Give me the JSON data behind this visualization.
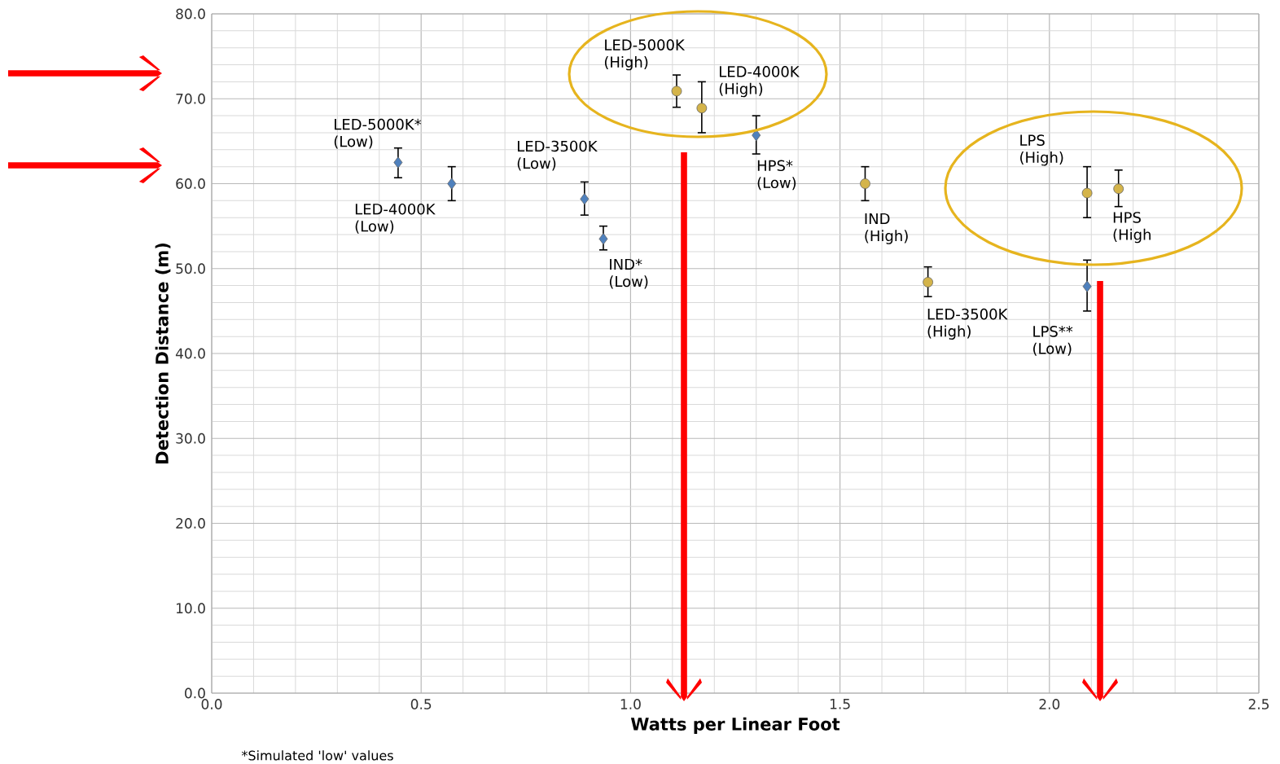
{
  "chart_data": {
    "type": "scatter",
    "xlabel": "Watts per Linear Foot",
    "ylabel": "Detection Distance (m)",
    "xlim": [
      0,
      2.5
    ],
    "ylim": [
      0,
      80
    ],
    "xticks": [
      {
        "value": 0,
        "label": "0.0"
      },
      {
        "value": 0.5,
        "label": "0.5"
      },
      {
        "value": 1,
        "label": "1.0"
      },
      {
        "value": 1.5,
        "label": "1.5"
      },
      {
        "value": 2,
        "label": "2.0"
      },
      {
        "value": 2.5,
        "label": "2.5"
      }
    ],
    "yticks": [
      {
        "value": 0,
        "label": "0.0"
      },
      {
        "value": 10,
        "label": "10.0"
      },
      {
        "value": 20,
        "label": "20.0"
      },
      {
        "value": 30,
        "label": "30.0"
      },
      {
        "value": 40,
        "label": "40.0"
      },
      {
        "value": 50,
        "label": "50.0"
      },
      {
        "value": 60,
        "label": "60.0"
      },
      {
        "value": 70,
        "label": "70.0"
      },
      {
        "value": 80,
        "label": "80.0"
      }
    ],
    "grid": true,
    "series": [
      {
        "color": "#4f81bd",
        "marker": "diamond",
        "x": [
          0.445,
          0.573,
          0.89,
          0.935,
          1.3,
          2.09
        ],
        "values": [
          62.5,
          60.0,
          58.2,
          53.5,
          65.7,
          47.9
        ],
        "errors": [
          [
            60.7,
            64.2
          ],
          [
            58.0,
            62.0
          ],
          [
            56.3,
            60.2
          ],
          [
            52.2,
            55.0
          ],
          [
            63.5,
            68.0
          ],
          [
            45.0,
            51.0
          ]
        ]
      },
      {
        "color": "#d4b44a",
        "marker": "circle",
        "x": [
          1.11,
          1.17,
          1.56,
          1.71,
          2.09,
          2.165
        ],
        "values": [
          70.9,
          68.9,
          60.0,
          48.4,
          58.9,
          59.4
        ],
        "errors": [
          [
            69.0,
            72.8
          ],
          [
            66.0,
            72.0
          ],
          [
            58.0,
            62.0
          ],
          [
            46.7,
            50.2
          ],
          [
            56.0,
            62.0
          ],
          [
            57.3,
            61.6
          ]
        ]
      }
    ],
    "annotations": [
      {
        "text": "LED-5000K* (Low)",
        "x": 0.445,
        "y": 62.5
      },
      {
        "text": "LED-4000K (Low)",
        "x": 0.573,
        "y": 60.0
      },
      {
        "text": "LED-3500K (Low)",
        "x": 0.89,
        "y": 58.2
      },
      {
        "text": "IND* (Low)",
        "x": 0.935,
        "y": 53.5
      },
      {
        "text": "HPS* (Low)",
        "x": 1.3,
        "y": 65.7
      },
      {
        "text": "LPS** (Low)",
        "x": 2.09,
        "y": 47.9
      },
      {
        "text": "LED-5000K (High)",
        "x": 1.11,
        "y": 70.9
      },
      {
        "text": "LED-4000K (High)",
        "x": 1.17,
        "y": 68.9
      },
      {
        "text": "IND (High)",
        "x": 1.56,
        "y": 60.0
      },
      {
        "text": "LED-3500K (High)",
        "x": 1.71,
        "y": 48.4
      },
      {
        "text": "LPS (High)",
        "x": 2.09,
        "y": 58.9
      },
      {
        "text": "HPS (High",
        "x": 2.165,
        "y": 59.4
      },
      "*Simulated 'low' values"
    ]
  }
}
